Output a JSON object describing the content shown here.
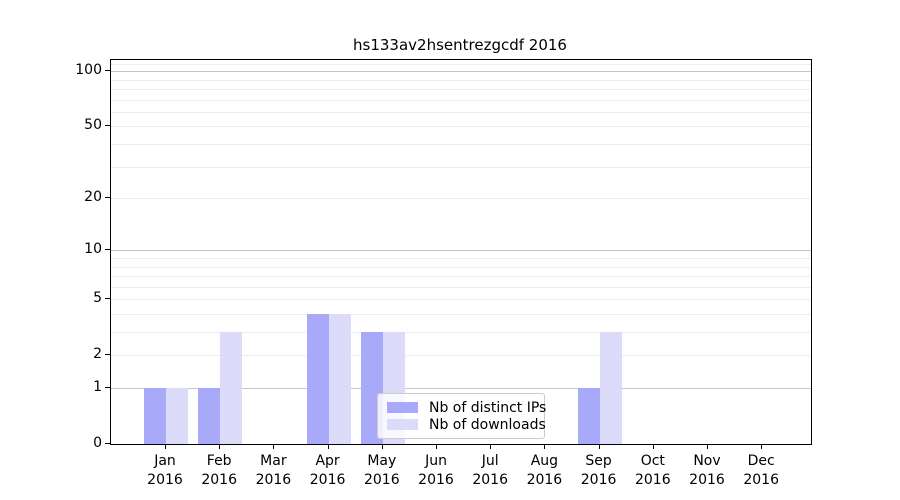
{
  "chart_data": {
    "type": "bar",
    "title": "hs133av2hsentrezgcdf 2016",
    "xlabel": "",
    "ylabel": "",
    "x_tick_year": "2016",
    "categories": [
      "Jan",
      "Feb",
      "Mar",
      "Apr",
      "May",
      "Jun",
      "Jul",
      "Aug",
      "Sep",
      "Oct",
      "Nov",
      "Dec"
    ],
    "series": [
      {
        "name": "Nb of distinct IPs",
        "color": "#a9a9fa",
        "values": [
          1,
          1,
          0,
          4,
          3,
          0,
          0,
          0,
          1,
          0,
          0,
          0
        ]
      },
      {
        "name": "Nb of downloads",
        "color": "#dcdcfa",
        "values": [
          1,
          3,
          0,
          4,
          3,
          0,
          0,
          0,
          3,
          0,
          0,
          0
        ]
      }
    ],
    "yscale": "log1p",
    "ylim": [
      0,
      115
    ],
    "y_ticks": [
      0,
      1,
      2,
      5,
      10,
      20,
      50,
      100
    ],
    "y_minor_gridlines": [
      2,
      3,
      4,
      5,
      6,
      7,
      8,
      9,
      20,
      30,
      40,
      50,
      60,
      70,
      80,
      90,
      110
    ],
    "y_major_gridlines": [
      1,
      10,
      100
    ],
    "grid": "horizontal-only",
    "legend_position": "lower-center"
  },
  "colors": {
    "bar_distinct_ips": "#a9a9fa",
    "bar_downloads": "#dcdcfa",
    "grid_minor": "#ececec",
    "grid_major": "#c4c4c4",
    "spine": "#000000",
    "text": "#000000",
    "legend_border": "#cccccc",
    "legend_bg": "rgba(255,255,255,0.8)"
  }
}
